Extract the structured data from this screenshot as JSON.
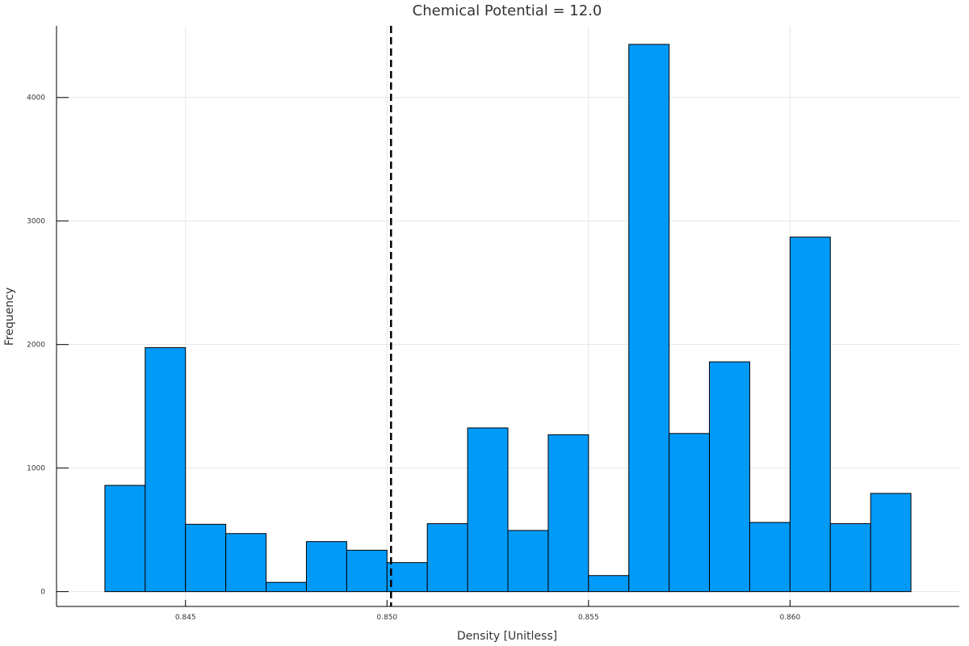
{
  "chart_data": {
    "type": "bar",
    "subtype": "histogram",
    "title": "Chemical Potential = 12.0",
    "xlabel": "Density [Unitless]",
    "ylabel": "Frequency",
    "xlim": [
      0.8418,
      0.8642
    ],
    "ylim": [
      -120,
      4580
    ],
    "grid": true,
    "legend": "none",
    "bar_color": "#009AF9",
    "bar_edge_color": "#000000",
    "grid_color": "#e6e6e6",
    "reference_line": {
      "x": 0.8501,
      "style": "dashed",
      "color": "#000000"
    },
    "x_ticks": [
      {
        "value": 0.845,
        "label": "0.845"
      },
      {
        "value": 0.85,
        "label": "0.850"
      },
      {
        "value": 0.855,
        "label": "0.855"
      },
      {
        "value": 0.86,
        "label": "0.860"
      }
    ],
    "y_ticks": [
      {
        "value": 0,
        "label": "0"
      },
      {
        "value": 1000,
        "label": "1000"
      },
      {
        "value": 2000,
        "label": "2000"
      },
      {
        "value": 3000,
        "label": "3000"
      },
      {
        "value": 4000,
        "label": "4000"
      }
    ],
    "bins": [
      {
        "start": 0.843,
        "end": 0.844,
        "count": 860
      },
      {
        "start": 0.844,
        "end": 0.845,
        "count": 1975
      },
      {
        "start": 0.845,
        "end": 0.846,
        "count": 545
      },
      {
        "start": 0.846,
        "end": 0.847,
        "count": 470
      },
      {
        "start": 0.847,
        "end": 0.848,
        "count": 75
      },
      {
        "start": 0.848,
        "end": 0.849,
        "count": 405
      },
      {
        "start": 0.849,
        "end": 0.85,
        "count": 335
      },
      {
        "start": 0.85,
        "end": 0.851,
        "count": 235
      },
      {
        "start": 0.851,
        "end": 0.852,
        "count": 550
      },
      {
        "start": 0.852,
        "end": 0.853,
        "count": 1325
      },
      {
        "start": 0.853,
        "end": 0.854,
        "count": 495
      },
      {
        "start": 0.854,
        "end": 0.855,
        "count": 1270
      },
      {
        "start": 0.855,
        "end": 0.856,
        "count": 130
      },
      {
        "start": 0.856,
        "end": 0.857,
        "count": 4430
      },
      {
        "start": 0.857,
        "end": 0.858,
        "count": 1280
      },
      {
        "start": 0.858,
        "end": 0.859,
        "count": 1860
      },
      {
        "start": 0.859,
        "end": 0.86,
        "count": 560
      },
      {
        "start": 0.86,
        "end": 0.861,
        "count": 2870
      },
      {
        "start": 0.861,
        "end": 0.862,
        "count": 550
      },
      {
        "start": 0.862,
        "end": 0.863,
        "count": 795
      }
    ]
  }
}
